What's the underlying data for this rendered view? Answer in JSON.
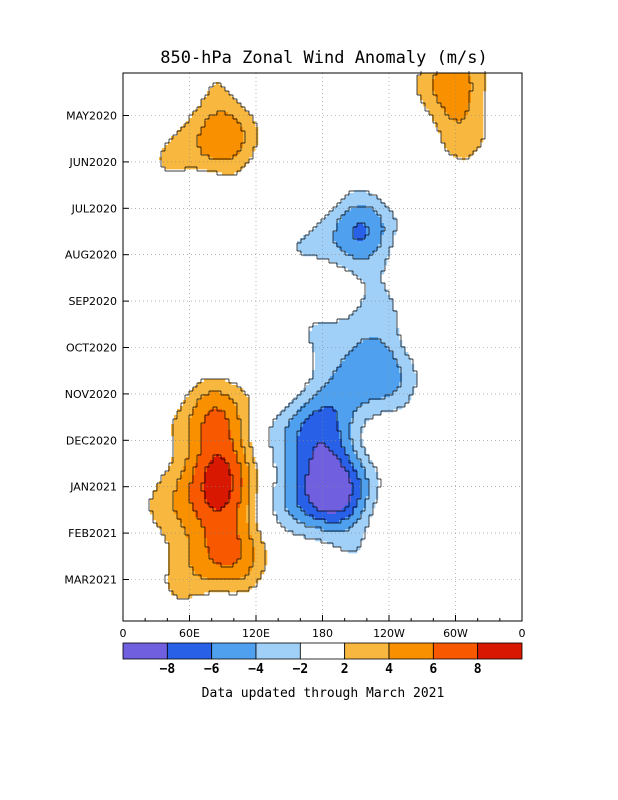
{
  "chart_data": {
    "type": "heatmap",
    "title": "850-hPa Zonal Wind Anomaly (m/s)",
    "footer": "Data updated through March 2021",
    "xlabel": "",
    "ylabel": "",
    "x_ticks": [
      {
        "label": "0",
        "lon": 0
      },
      {
        "label": "60E",
        "lon": 60
      },
      {
        "label": "120E",
        "lon": 120
      },
      {
        "label": "180",
        "lon": 180
      },
      {
        "label": "120W",
        "lon": 240
      },
      {
        "label": "60W",
        "lon": 300
      },
      {
        "label": "0",
        "lon": 360
      }
    ],
    "x_range": [
      0,
      360
    ],
    "y_ticks": [
      {
        "label": "MAY2020",
        "month": 1
      },
      {
        "label": "JUN2020",
        "month": 2
      },
      {
        "label": "JUL2020",
        "month": 3
      },
      {
        "label": "AUG2020",
        "month": 4
      },
      {
        "label": "SEP2020",
        "month": 5
      },
      {
        "label": "OCT2020",
        "month": 6
      },
      {
        "label": "NOV2020",
        "month": 7
      },
      {
        "label": "DEC2020",
        "month": 8
      },
      {
        "label": "JAN2021",
        "month": 9
      },
      {
        "label": "FEB2021",
        "month": 10
      },
      {
        "label": "MAR2021",
        "month": 11
      }
    ],
    "y_range_months": [
      0.1,
      11.9
    ],
    "colorbar": {
      "bins": [
        {
          "min": -99,
          "max": -8,
          "color": "#7060e0"
        },
        {
          "min": -8,
          "max": -6,
          "color": "#2860e8"
        },
        {
          "min": -6,
          "max": -4,
          "color": "#50a0f0"
        },
        {
          "min": -4,
          "max": -2,
          "color": "#a0d0f8"
        },
        {
          "min": -2,
          "max": 2,
          "color": "#ffffff"
        },
        {
          "min": 2,
          "max": 4,
          "color": "#f8b840"
        },
        {
          "min": 4,
          "max": 6,
          "color": "#f89000"
        },
        {
          "min": 6,
          "max": 8,
          "color": "#f85800"
        },
        {
          "min": 8,
          "max": 99,
          "color": "#d81800"
        }
      ],
      "tick_labels": [
        "−8",
        "−6",
        "−4",
        "−2",
        "2",
        "4",
        "6",
        "8"
      ]
    },
    "anomaly_centers": [
      {
        "lon": 85,
        "month": 10.3,
        "peak": 6.5
      },
      {
        "lon": 80,
        "month": 8.9,
        "peak": 6.3
      },
      {
        "lon": 87,
        "month": 7.7,
        "peak": 5.0
      },
      {
        "lon": 82,
        "month": 1.4,
        "peak": 5.0
      },
      {
        "lon": 185,
        "month": 9.2,
        "peak": -8.5
      },
      {
        "lon": 170,
        "month": 8.0,
        "peak": -6.2
      },
      {
        "lon": 218,
        "month": 6.4,
        "peak": -6.3
      },
      {
        "lon": 210,
        "month": 3.6,
        "peak": -5.2
      },
      {
        "lon": 300,
        "month": 0.6,
        "peak": 5.0
      }
    ]
  }
}
